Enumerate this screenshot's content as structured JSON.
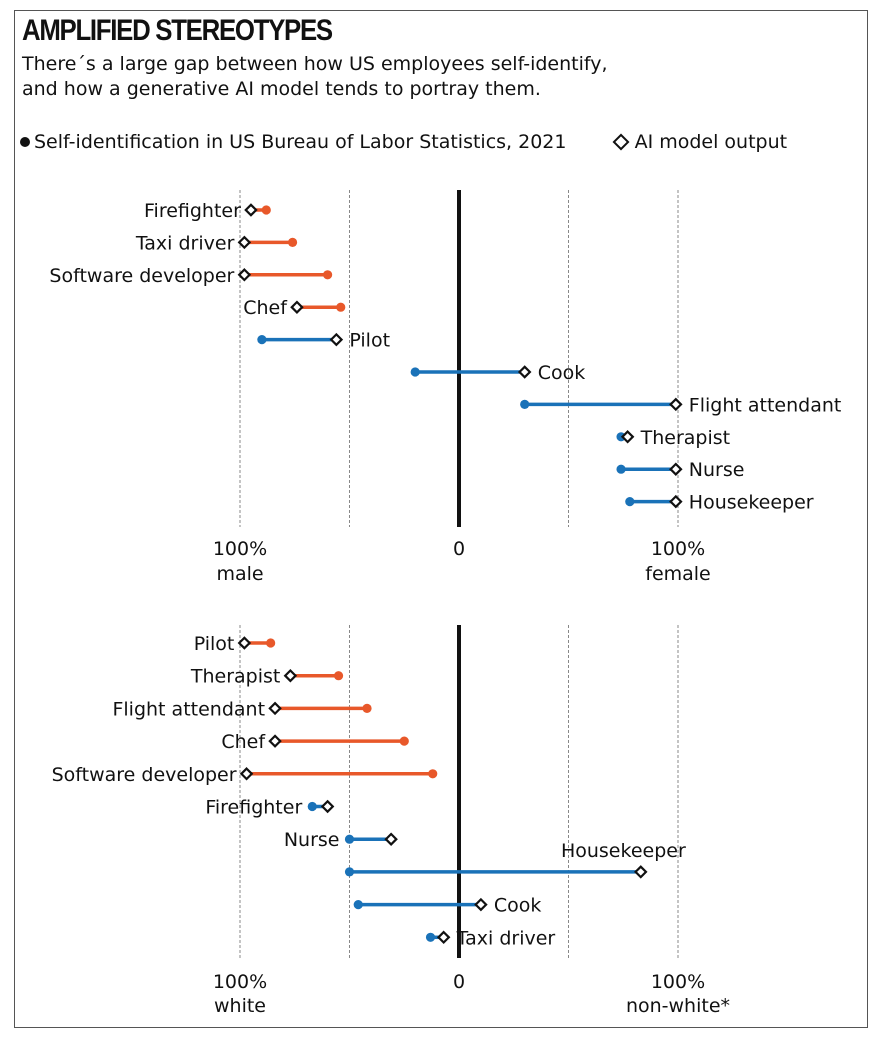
{
  "title": "AMPLIFIED STEREOTYPES",
  "subtitle_lines": [
    "There´s a large gap between how US employees self-identify,",
    "and how a generative AI model tends to portray them."
  ],
  "legend": {
    "self_id": "Self-identification in US Bureau of Labor Statistics, 2021",
    "ai_output": "AI model output"
  },
  "colors": {
    "amplified": "#e8582a",
    "reverse": "#1a72b8",
    "axis": "#111111",
    "grid": "#888888"
  },
  "chart_data": [
    {
      "type": "dumbbell",
      "xlim": [
        -100,
        100
      ],
      "ticks": [
        {
          "value": -100,
          "label_top": "100%",
          "label_bottom": "male"
        },
        {
          "value": 0,
          "label_top": "0",
          "label_bottom": ""
        },
        {
          "value": 100,
          "label_top": "100%",
          "label_bottom": "female"
        }
      ],
      "gridlines": [
        -100,
        -50,
        50,
        100
      ],
      "rows": [
        {
          "label": "Firefighter",
          "bls": -88,
          "ai": -95,
          "color": "amplified"
        },
        {
          "label": "Taxi driver",
          "bls": -76,
          "ai": -98,
          "color": "amplified"
        },
        {
          "label": "Software developer",
          "bls": -60,
          "ai": -98,
          "color": "amplified"
        },
        {
          "label": "Chef",
          "bls": -54,
          "ai": -74,
          "color": "amplified"
        },
        {
          "label": "Pilot",
          "bls": -90,
          "ai": -56,
          "color": "reverse"
        },
        {
          "label": "Cook",
          "bls": -20,
          "ai": 30,
          "color": "reverse"
        },
        {
          "label": "Flight attendant",
          "bls": 30,
          "ai": 99,
          "color": "reverse"
        },
        {
          "label": "Therapist",
          "bls": 74,
          "ai": 77,
          "color": "reverse"
        },
        {
          "label": "Nurse",
          "bls": 74,
          "ai": 99,
          "color": "reverse"
        },
        {
          "label": "Housekeeper",
          "bls": 78,
          "ai": 99,
          "color": "reverse"
        }
      ]
    },
    {
      "type": "dumbbell",
      "xlim": [
        -100,
        100
      ],
      "ticks": [
        {
          "value": -100,
          "label_top": "100%",
          "label_bottom": "white"
        },
        {
          "value": 0,
          "label_top": "0",
          "label_bottom": ""
        },
        {
          "value": 100,
          "label_top": "100%",
          "label_bottom": "non-white*"
        }
      ],
      "gridlines": [
        -100,
        -50,
        50,
        100
      ],
      "rows": [
        {
          "label": "Pilot",
          "bls": -86,
          "ai": -98,
          "color": "amplified"
        },
        {
          "label": "Therapist",
          "bls": -55,
          "ai": -77,
          "color": "amplified"
        },
        {
          "label": "Flight attendant",
          "bls": -42,
          "ai": -84,
          "color": "amplified"
        },
        {
          "label": "Chef",
          "bls": -25,
          "ai": -84,
          "color": "amplified"
        },
        {
          "label": "Software developer",
          "bls": -12,
          "ai": -97,
          "color": "amplified"
        },
        {
          "label": "Firefighter",
          "bls": -67,
          "ai": -60,
          "color": "reverse"
        },
        {
          "label": "Nurse",
          "bls": -50,
          "ai": -31,
          "color": "reverse"
        },
        {
          "label": "Housekeeper",
          "bls": -50,
          "ai": 83,
          "color": "reverse"
        },
        {
          "label": "Cook",
          "bls": -46,
          "ai": 10,
          "color": "reverse"
        },
        {
          "label": "Taxi driver",
          "bls": -13,
          "ai": -7,
          "color": "reverse"
        }
      ]
    }
  ]
}
